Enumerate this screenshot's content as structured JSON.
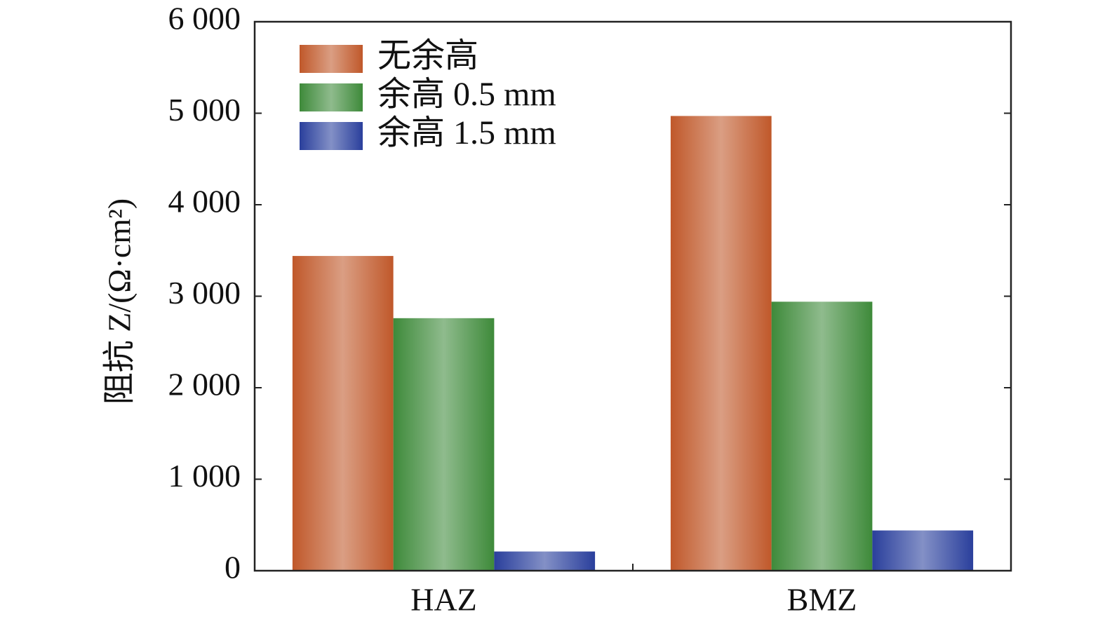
{
  "chart_data": {
    "type": "bar",
    "y_label": "阻抗 Z/(Ω·cm²)",
    "categories": [
      "HAZ",
      "BMZ"
    ],
    "series": [
      {
        "name": "无余高",
        "color": "#c0582a",
        "values": [
          3440,
          4970
        ]
      },
      {
        "name": "余高 0.5 mm",
        "color": "#3e8a3a",
        "values": [
          2760,
          2940
        ]
      },
      {
        "name": "余高 1.5 mm",
        "color": "#2a3f9c",
        "values": [
          210,
          440
        ]
      }
    ],
    "ylim": [
      0,
      6000
    ],
    "yticks": [
      0,
      {
        "value": 1000,
        "label": "1 000"
      },
      {
        "value": 2000,
        "label": "2 000"
      },
      {
        "value": 3000,
        "label": "3 000"
      },
      {
        "value": 4000,
        "label": "4 000"
      },
      {
        "value": 5000,
        "label": "5 000"
      },
      {
        "value": 6000,
        "label": "6 000"
      }
    ],
    "legend": "upper left",
    "grid": false
  }
}
